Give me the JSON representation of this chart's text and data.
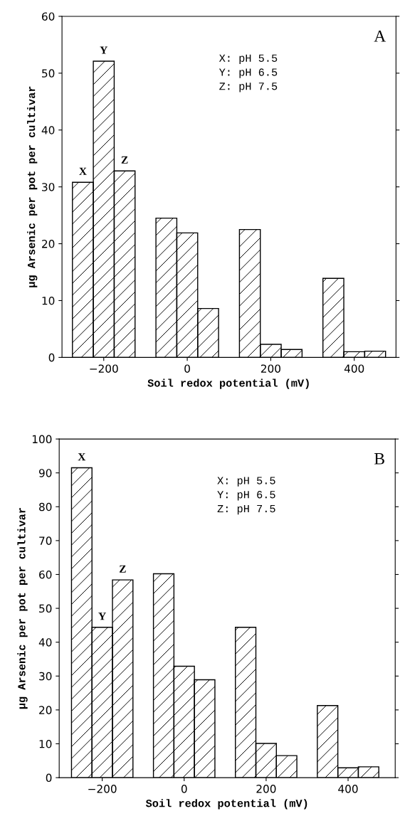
{
  "chart_data": [
    {
      "type": "bar",
      "title": "A",
      "xlabel": "Soil redox potential (mV)",
      "ylabel": "μg Arsenic per pot per cultivar",
      "annotations": [
        "X: pH 5.5\nY: pH 6.5\nZ: pH 7.5"
      ],
      "xlim": [
        -300,
        500
      ],
      "xticks": [
        {
          "value": -200,
          "label": "−200"
        },
        0,
        200,
        400
      ],
      "ylim": [
        0,
        60
      ],
      "yticks": [
        0,
        10,
        20,
        30,
        40,
        50,
        60
      ],
      "series": [
        {
          "name": "X",
          "color": "#000000",
          "x": [
            -250,
            -50,
            150,
            350
          ],
          "values": [
            30.8,
            24.5,
            22.5,
            13.9
          ]
        },
        {
          "name": "Y",
          "color": "#000000",
          "x": [
            -200,
            0,
            200,
            400
          ],
          "values": [
            52.1,
            21.9,
            2.3,
            1.0
          ]
        },
        {
          "name": "Z",
          "color": "#000000",
          "x": [
            -150,
            50,
            250,
            450
          ],
          "values": [
            32.8,
            8.6,
            1.4,
            1.1
          ]
        }
      ],
      "grid": false,
      "legend": false
    },
    {
      "type": "bar",
      "title": "B",
      "xlabel": "Soil redox potential (mV)",
      "ylabel": "μg Arsenic per pot per cultivar",
      "annotations": [
        "X: pH 5.5\nY: pH 6.5\nZ: pH 7.5"
      ],
      "xlim": [
        -305,
        515
      ],
      "xticks": [
        {
          "value": -200,
          "label": "−200"
        },
        0,
        200,
        400
      ],
      "ylim": [
        0,
        100
      ],
      "yticks": [
        0,
        10,
        20,
        30,
        40,
        50,
        60,
        70,
        80,
        90,
        100
      ],
      "series": [
        {
          "name": "X",
          "color": "#000000",
          "x": [
            -250,
            -50,
            150,
            350
          ],
          "values": [
            91.5,
            60.2,
            44.4,
            21.3
          ]
        },
        {
          "name": "Y",
          "color": "#000000",
          "x": [
            -200,
            0,
            200,
            400
          ],
          "values": [
            44.4,
            32.9,
            10.1,
            2.9
          ]
        },
        {
          "name": "Z",
          "color": "#000000",
          "x": [
            -150,
            50,
            250,
            450
          ],
          "values": [
            58.4,
            28.9,
            6.5,
            3.2
          ]
        }
      ],
      "grid": false,
      "legend": false
    }
  ]
}
